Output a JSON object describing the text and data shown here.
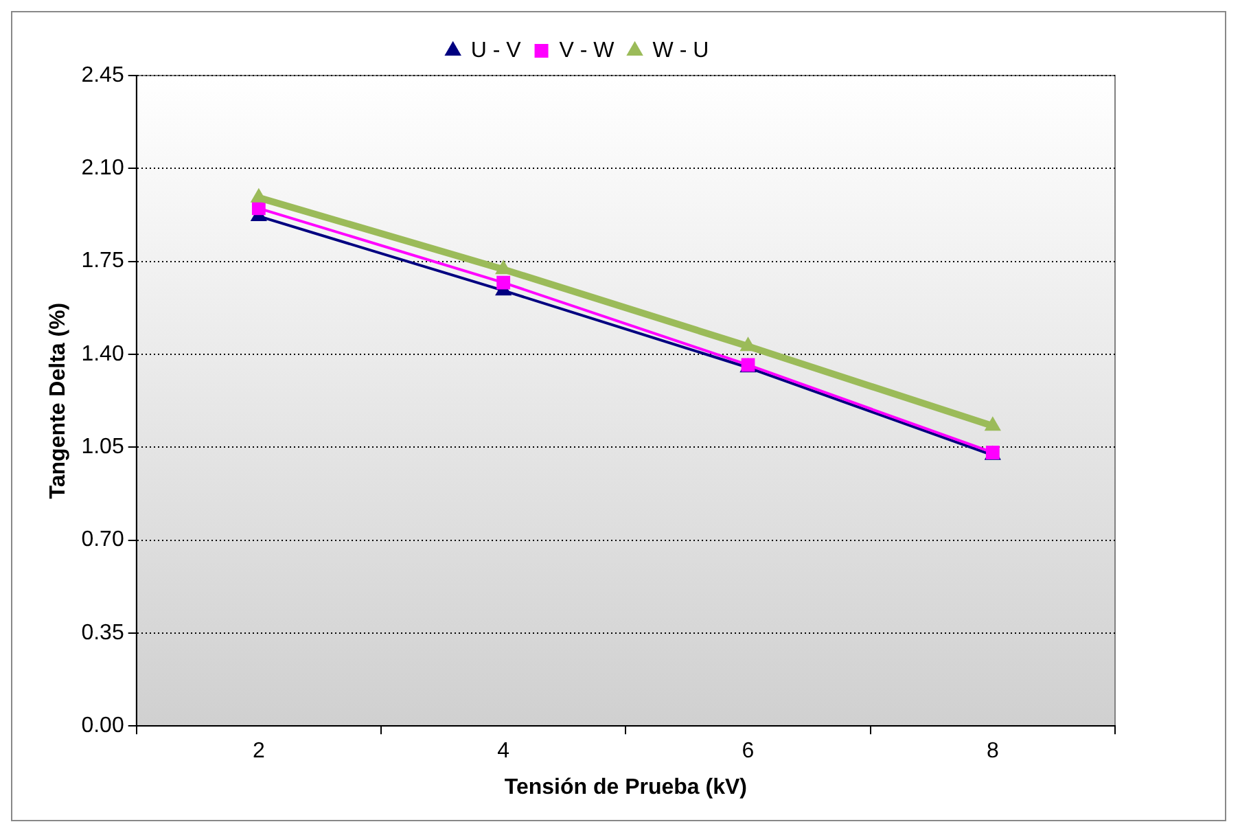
{
  "chart_data": {
    "type": "line",
    "xlabel": "Tensión de Prueba (kV)",
    "ylabel": "Tangente Delta (%)",
    "categories": [
      "2",
      "4",
      "6",
      "8"
    ],
    "series": [
      {
        "name": "U - V",
        "color": "#000080",
        "marker": "triangle",
        "values": [
          1.92,
          1.64,
          1.35,
          1.02
        ]
      },
      {
        "name": "V - W",
        "color": "#ff00ff",
        "marker": "square",
        "values": [
          1.95,
          1.67,
          1.36,
          1.03
        ]
      },
      {
        "name": "W - U",
        "color": "#9bbb59",
        "marker": "triangle",
        "values": [
          1.99,
          1.72,
          1.43,
          1.13
        ]
      }
    ],
    "ylim": [
      0,
      2.45
    ],
    "yticks": [
      {
        "value": 0,
        "label": "0.00"
      },
      {
        "value": 0.35,
        "label": "0.35"
      },
      {
        "value": 0.7,
        "label": "0.70"
      },
      {
        "value": 1.05,
        "label": "1.05"
      },
      {
        "value": 1.4,
        "label": "1.40"
      },
      {
        "value": 1.75,
        "label": "1.75"
      },
      {
        "value": 2.1,
        "label": "2.10"
      },
      {
        "value": 2.45,
        "label": "2.45"
      }
    ],
    "grid": "y",
    "legend": "top"
  }
}
